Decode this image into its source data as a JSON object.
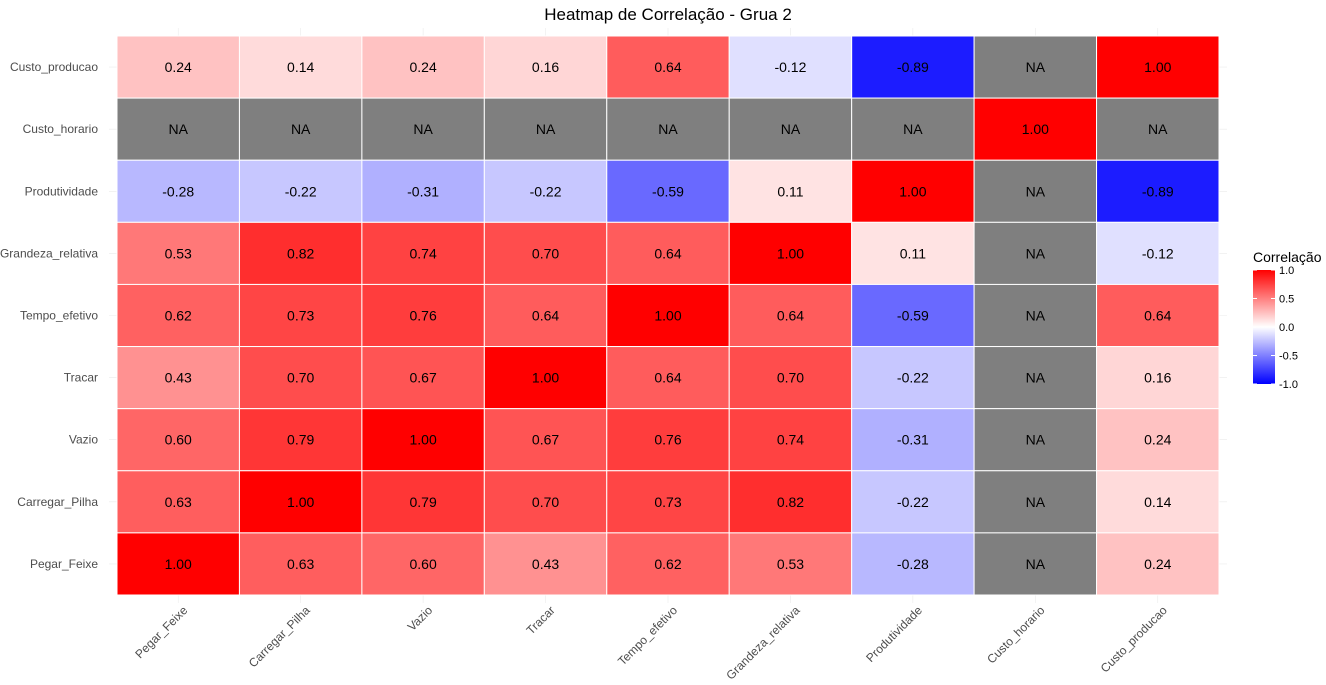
{
  "chart_data": {
    "type": "heatmap",
    "title": "Heatmap de Correlação - Grua 2",
    "x_categories": [
      "Pegar_Feixe",
      "Carregar_Pilha",
      "Vazio",
      "Tracar",
      "Tempo_efetivo",
      "Grandeza_relativa",
      "Produtividade",
      "Custo_horario",
      "Custo_producao"
    ],
    "y_categories_top_to_bottom": [
      "Custo_producao",
      "Custo_horario",
      "Produtividade",
      "Grandeza_relativa",
      "Tempo_efetivo",
      "Tracar",
      "Vazio",
      "Carregar_Pilha",
      "Pegar_Feixe"
    ],
    "values": [
      [
        "0.24",
        "0.14",
        "0.24",
        "0.16",
        "0.64",
        "-0.12",
        "-0.89",
        "NA",
        "1.00"
      ],
      [
        "NA",
        "NA",
        "NA",
        "NA",
        "NA",
        "NA",
        "NA",
        "1.00",
        "NA"
      ],
      [
        "-0.28",
        "-0.22",
        "-0.31",
        "-0.22",
        "-0.59",
        "0.11",
        "1.00",
        "NA",
        "-0.89"
      ],
      [
        "0.53",
        "0.82",
        "0.74",
        "0.70",
        "0.64",
        "1.00",
        "0.11",
        "NA",
        "-0.12"
      ],
      [
        "0.62",
        "0.73",
        "0.76",
        "0.64",
        "1.00",
        "0.64",
        "-0.59",
        "NA",
        "0.64"
      ],
      [
        "0.43",
        "0.70",
        "0.67",
        "1.00",
        "0.64",
        "0.70",
        "-0.22",
        "NA",
        "0.16"
      ],
      [
        "0.60",
        "0.79",
        "1.00",
        "0.67",
        "0.76",
        "0.74",
        "-0.31",
        "NA",
        "0.24"
      ],
      [
        "0.63",
        "1.00",
        "0.79",
        "0.70",
        "0.73",
        "0.82",
        "-0.22",
        "NA",
        "0.14"
      ],
      [
        "1.00",
        "0.63",
        "0.60",
        "0.43",
        "0.62",
        "0.53",
        "-0.28",
        "NA",
        "0.24"
      ]
    ],
    "legend": {
      "title": "Correlação",
      "ticks": [
        "1.0",
        "0.5",
        "0.0",
        "-0.5",
        "-1.0"
      ],
      "limits": [
        -1,
        1
      ]
    },
    "colors": {
      "low": "#0000ff",
      "mid": "#ffffff",
      "high": "#ff0000",
      "na": "#7f7f7f"
    },
    "legend_position": "right",
    "grid": true
  }
}
